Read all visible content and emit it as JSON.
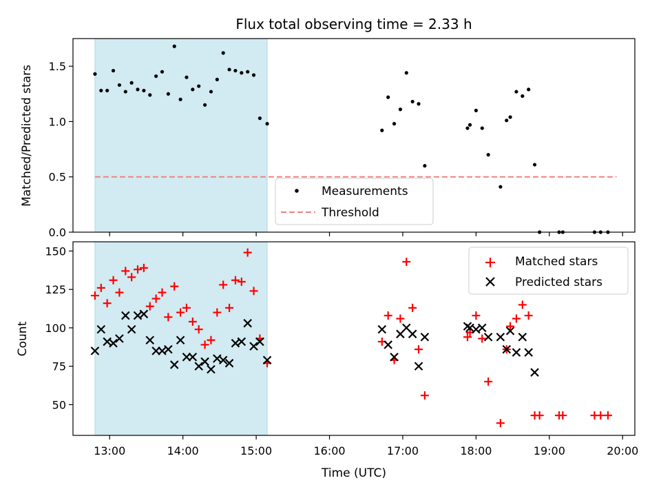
{
  "title": "Flux total observing time = 2.33 h",
  "xlabel": "Time (UTC)",
  "x_ticks": [
    "13:00",
    "14:00",
    "15:00",
    "16:00",
    "17:00",
    "18:00",
    "19:00",
    "20:00"
  ],
  "shade_color": "#add8e6",
  "chart_data": [
    {
      "type": "scatter",
      "ylabel": "Matched/Predicted stars",
      "xlim": [
        "12:30",
        "20:10"
      ],
      "ylim": [
        0,
        1.75
      ],
      "y_ticks": [
        "0.0",
        "0.5",
        "1.0",
        "1.5"
      ],
      "shaded_region": [
        "12:48",
        "15:09"
      ],
      "legend_position": "lower-center",
      "threshold": {
        "name": "Threshold",
        "value": 0.5,
        "x_range": [
          "12:48",
          "19:55"
        ],
        "color": "#f08080"
      },
      "series": [
        {
          "name": "Measurements",
          "color": "#000000",
          "points": [
            [
              "12:48",
              1.43
            ],
            [
              "12:53",
              1.28
            ],
            [
              "12:58",
              1.28
            ],
            [
              "13:03",
              1.46
            ],
            [
              "13:08",
              1.33
            ],
            [
              "13:13",
              1.27
            ],
            [
              "13:18",
              1.35
            ],
            [
              "13:23",
              1.29
            ],
            [
              "13:28",
              1.28
            ],
            [
              "13:33",
              1.24
            ],
            [
              "13:38",
              1.41
            ],
            [
              "13:43",
              1.45
            ],
            [
              "13:48",
              1.25
            ],
            [
              "13:53",
              1.68
            ],
            [
              "13:58",
              1.2
            ],
            [
              "14:03",
              1.4
            ],
            [
              "14:08",
              1.29
            ],
            [
              "14:13",
              1.32
            ],
            [
              "14:18",
              1.15
            ],
            [
              "14:23",
              1.27
            ],
            [
              "14:28",
              1.38
            ],
            [
              "14:33",
              1.62
            ],
            [
              "14:38",
              1.47
            ],
            [
              "14:43",
              1.46
            ],
            [
              "14:48",
              1.44
            ],
            [
              "14:53",
              1.45
            ],
            [
              "14:58",
              1.42
            ],
            [
              "15:03",
              1.03
            ],
            [
              "15:09",
              0.98
            ],
            [
              "16:43",
              0.92
            ],
            [
              "16:48",
              1.22
            ],
            [
              "16:53",
              0.98
            ],
            [
              "16:58",
              1.11
            ],
            [
              "17:03",
              1.44
            ],
            [
              "17:08",
              1.18
            ],
            [
              "17:13",
              1.16
            ],
            [
              "17:18",
              0.6
            ],
            [
              "17:53",
              0.94
            ],
            [
              "17:55",
              0.97
            ],
            [
              "18:00",
              1.1
            ],
            [
              "18:05",
              0.94
            ],
            [
              "18:10",
              0.7
            ],
            [
              "18:20",
              0.41
            ],
            [
              "18:25",
              1.01
            ],
            [
              "18:28",
              1.04
            ],
            [
              "18:33",
              1.27
            ],
            [
              "18:38",
              1.23
            ],
            [
              "18:43",
              1.29
            ],
            [
              "18:48",
              0.61
            ],
            [
              "18:52",
              0.0
            ],
            [
              "19:08",
              0.0
            ],
            [
              "19:11",
              0.0
            ],
            [
              "19:37",
              0.0
            ],
            [
              "19:42",
              0.0
            ],
            [
              "19:48",
              0.0
            ]
          ]
        }
      ]
    },
    {
      "type": "scatter",
      "ylabel": "Count",
      "xlim": [
        "12:30",
        "20:10"
      ],
      "ylim": [
        30,
        156
      ],
      "y_ticks": [
        "50",
        "75",
        "100",
        "125",
        "150"
      ],
      "shaded_region": [
        "12:48",
        "15:09"
      ],
      "legend_position": "upper-right",
      "series": [
        {
          "name": "Matched stars",
          "color": "#ff0000",
          "points": [
            [
              "12:48",
              121
            ],
            [
              "12:53",
              126
            ],
            [
              "12:58",
              116
            ],
            [
              "13:03",
              131
            ],
            [
              "13:08",
              123
            ],
            [
              "13:13",
              137
            ],
            [
              "13:18",
              133
            ],
            [
              "13:23",
              138
            ],
            [
              "13:28",
              139
            ],
            [
              "13:33",
              114
            ],
            [
              "13:38",
              119
            ],
            [
              "13:43",
              123
            ],
            [
              "13:48",
              107
            ],
            [
              "13:53",
              127
            ],
            [
              "13:58",
              110
            ],
            [
              "14:03",
              113
            ],
            [
              "14:08",
              104
            ],
            [
              "14:13",
              99
            ],
            [
              "14:18",
              89
            ],
            [
              "14:23",
              92
            ],
            [
              "14:28",
              110
            ],
            [
              "14:33",
              128
            ],
            [
              "14:38",
              113
            ],
            [
              "14:43",
              131
            ],
            [
              "14:48",
              130
            ],
            [
              "14:53",
              149
            ],
            [
              "14:58",
              124
            ],
            [
              "15:03",
              93
            ],
            [
              "15:09",
              77
            ],
            [
              "16:43",
              91
            ],
            [
              "16:48",
              108
            ],
            [
              "16:53",
              79
            ],
            [
              "16:58",
              106
            ],
            [
              "17:03",
              143
            ],
            [
              "17:08",
              113
            ],
            [
              "17:13",
              86
            ],
            [
              "17:18",
              56
            ],
            [
              "17:53",
              94
            ],
            [
              "17:55",
              97
            ],
            [
              "18:00",
              108
            ],
            [
              "18:05",
              93
            ],
            [
              "18:10",
              65
            ],
            [
              "18:20",
              38
            ],
            [
              "18:25",
              86
            ],
            [
              "18:28",
              101
            ],
            [
              "18:33",
              106
            ],
            [
              "18:38",
              115
            ],
            [
              "18:43",
              108
            ],
            [
              "18:48",
              43
            ],
            [
              "18:52",
              43
            ],
            [
              "19:08",
              43
            ],
            [
              "19:11",
              43
            ],
            [
              "19:37",
              43
            ],
            [
              "19:42",
              43
            ],
            [
              "19:48",
              43
            ]
          ]
        },
        {
          "name": "Predicted stars",
          "color": "#000000",
          "points": [
            [
              "12:48",
              85
            ],
            [
              "12:53",
              99
            ],
            [
              "12:58",
              91
            ],
            [
              "13:03",
              90
            ],
            [
              "13:08",
              93
            ],
            [
              "13:13",
              108
            ],
            [
              "13:18",
              99
            ],
            [
              "13:23",
              108
            ],
            [
              "13:28",
              109
            ],
            [
              "13:33",
              92
            ],
            [
              "13:38",
              85
            ],
            [
              "13:43",
              85
            ],
            [
              "13:48",
              86
            ],
            [
              "13:53",
              76
            ],
            [
              "13:58",
              92
            ],
            [
              "14:03",
              81
            ],
            [
              "14:08",
              81
            ],
            [
              "14:13",
              75
            ],
            [
              "14:18",
              78
            ],
            [
              "14:23",
              73
            ],
            [
              "14:28",
              80
            ],
            [
              "14:33",
              79
            ],
            [
              "14:38",
              77
            ],
            [
              "14:43",
              90
            ],
            [
              "14:48",
              91
            ],
            [
              "14:53",
              103
            ],
            [
              "14:58",
              88
            ],
            [
              "15:03",
              91
            ],
            [
              "15:09",
              79
            ],
            [
              "16:43",
              99
            ],
            [
              "16:48",
              89
            ],
            [
              "16:53",
              81
            ],
            [
              "16:58",
              96
            ],
            [
              "17:03",
              100
            ],
            [
              "17:08",
              96
            ],
            [
              "17:13",
              75
            ],
            [
              "17:18",
              94
            ],
            [
              "17:53",
              101
            ],
            [
              "17:55",
              100
            ],
            [
              "18:00",
              99
            ],
            [
              "18:05",
              100
            ],
            [
              "18:10",
              94
            ],
            [
              "18:20",
              94
            ],
            [
              "18:25",
              86
            ],
            [
              "18:28",
              98
            ],
            [
              "18:33",
              84
            ],
            [
              "18:38",
              94
            ],
            [
              "18:43",
              84
            ],
            [
              "18:48",
              71
            ]
          ]
        }
      ]
    }
  ]
}
